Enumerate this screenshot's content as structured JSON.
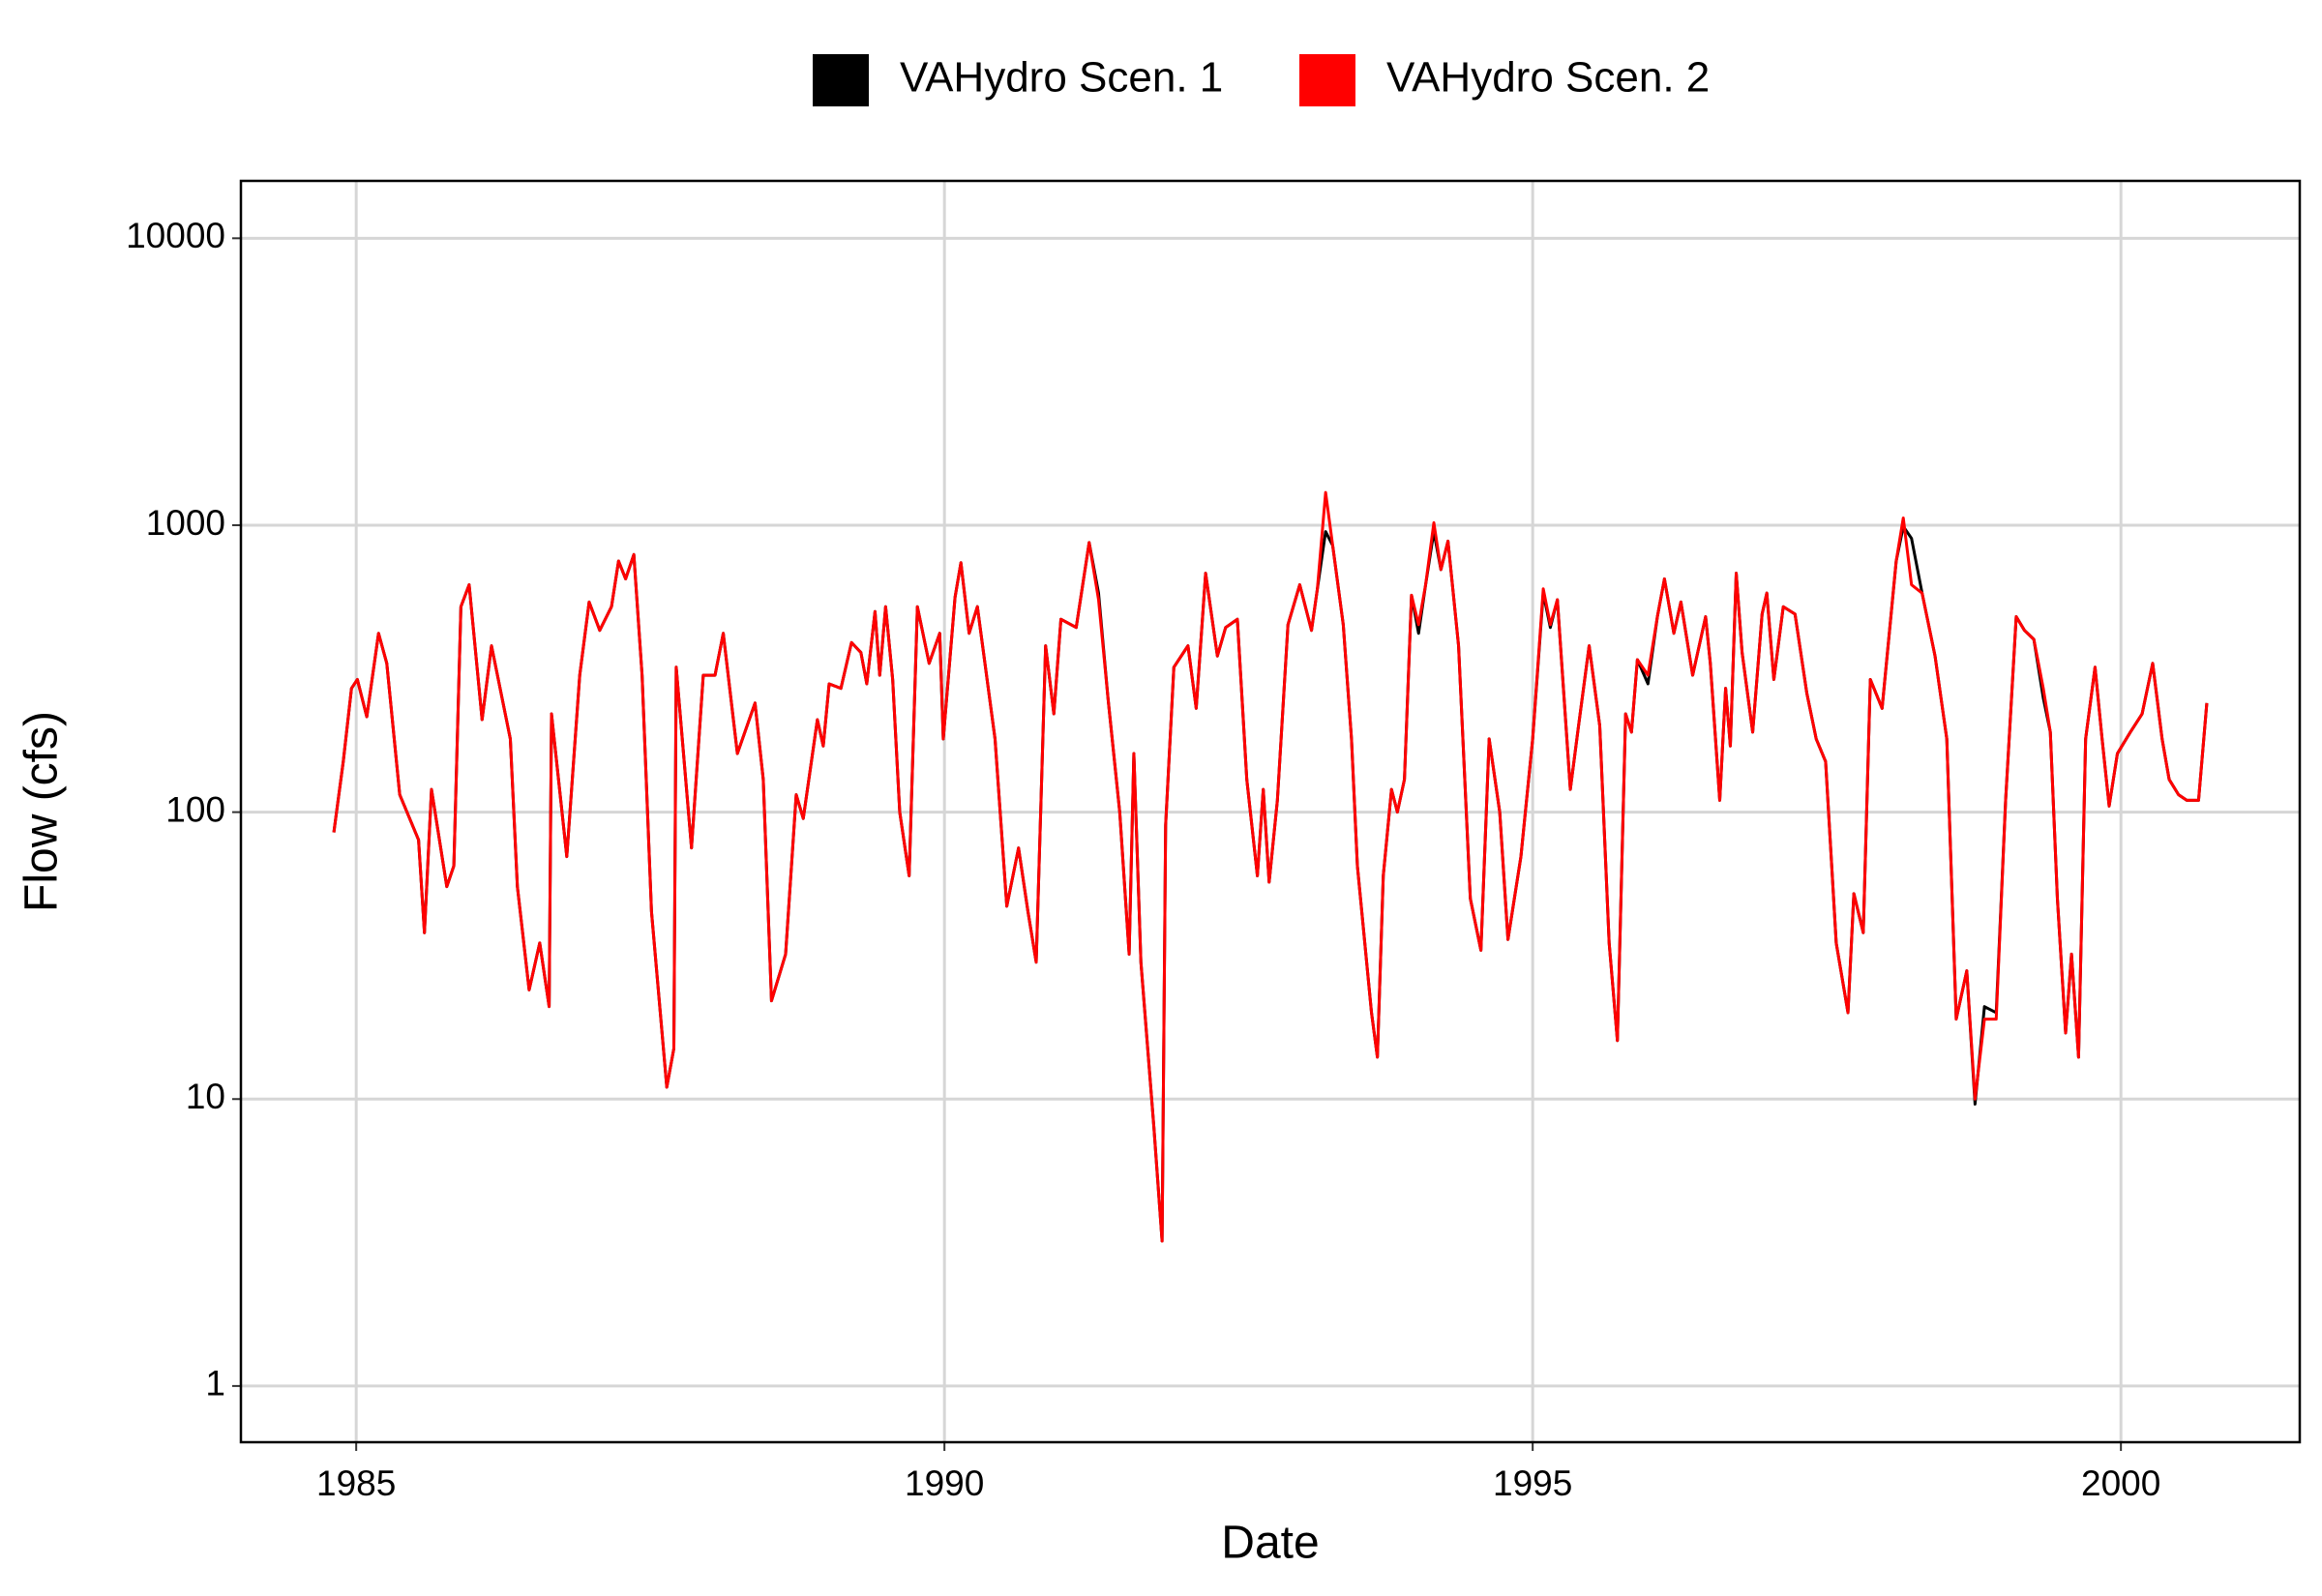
{
  "chart_data": {
    "type": "line",
    "x_label": "Date",
    "y_label": "Flow (cfs)",
    "x": [
      1984.81,
      1984.89,
      1984.96,
      1985.01,
      1985.09,
      1985.19,
      1985.26,
      1985.37,
      1985.53,
      1985.58,
      1985.64,
      1985.77,
      1985.83,
      1985.89,
      1985.96,
      1986.07,
      1986.15,
      1986.31,
      1986.37,
      1986.47,
      1986.56,
      1986.64,
      1986.66,
      1986.79,
      1986.9,
      1986.98,
      1987.07,
      1987.17,
      1987.23,
      1987.29,
      1987.36,
      1987.43,
      1987.51,
      1987.64,
      1987.7,
      1987.72,
      1987.85,
      1987.95,
      1988.05,
      1988.12,
      1988.24,
      1988.39,
      1988.46,
      1988.53,
      1988.65,
      1988.74,
      1988.8,
      1988.92,
      1988.97,
      1989.02,
      1989.12,
      1989.21,
      1989.29,
      1989.34,
      1989.41,
      1989.45,
      1989.5,
      1989.56,
      1989.62,
      1989.7,
      1989.77,
      1989.87,
      1989.96,
      1989.99,
      1990.09,
      1990.14,
      1990.21,
      1990.28,
      1990.43,
      1990.53,
      1990.63,
      1990.71,
      1990.78,
      1990.86,
      1990.93,
      1990.99,
      1991.12,
      1991.23,
      1991.31,
      1991.39,
      1991.49,
      1991.57,
      1991.61,
      1991.67,
      1991.78,
      1991.85,
      1991.88,
      1991.95,
      1992.07,
      1992.14,
      1992.22,
      1992.32,
      1992.39,
      1992.49,
      1992.57,
      1992.66,
      1992.71,
      1992.76,
      1992.83,
      1992.92,
      1993.02,
      1993.12,
      1993.17,
      1993.24,
      1993.3,
      1993.39,
      1993.46,
      1993.51,
      1993.63,
      1993.68,
      1993.73,
      1993.8,
      1993.85,
      1993.91,
      1993.97,
      1994.03,
      1994.09,
      1994.16,
      1994.22,
      1994.28,
      1994.37,
      1994.47,
      1994.56,
      1994.63,
      1994.72,
      1994.79,
      1994.9,
      1995.0,
      1995.09,
      1995.15,
      1995.21,
      1995.32,
      1995.39,
      1995.48,
      1995.57,
      1995.65,
      1995.72,
      1995.79,
      1995.84,
      1995.89,
      1995.98,
      1996.06,
      1996.12,
      1996.2,
      1996.26,
      1996.36,
      1996.47,
      1996.51,
      1996.59,
      1996.64,
      1996.68,
      1996.73,
      1996.78,
      1996.87,
      1996.95,
      1996.99,
      1997.05,
      1997.13,
      1997.23,
      1997.33,
      1997.41,
      1997.49,
      1997.58,
      1997.68,
      1997.73,
      1997.81,
      1997.87,
      1997.97,
      1998.09,
      1998.15,
      1998.22,
      1998.31,
      1998.42,
      1998.52,
      1998.6,
      1998.69,
      1998.76,
      1998.84,
      1998.94,
      1999.02,
      1999.11,
      1999.18,
      1999.26,
      1999.34,
      1999.4,
      1999.46,
      1999.53,
      1999.58,
      1999.64,
      1999.7,
      1999.78,
      1999.84,
      1999.9,
      1999.97,
      2000.08,
      2000.18,
      2000.27,
      2000.35,
      2000.41,
      2000.49,
      2000.56,
      2000.66,
      2000.73
    ],
    "series": [
      {
        "name": "VAHydro Scen. 1",
        "color": "#000000",
        "values": [
          85,
          150,
          270,
          290,
          215,
          420,
          330,
          115,
          80,
          38,
          120,
          55,
          65,
          520,
          620,
          210,
          380,
          180,
          55,
          24,
          35,
          21,
          220,
          70,
          300,
          540,
          430,
          520,
          750,
          650,
          790,
          300,
          45,
          11,
          15,
          320,
          75,
          300,
          300,
          420,
          160,
          240,
          130,
          22,
          32,
          115,
          95,
          210,
          170,
          280,
          270,
          390,
          360,
          280,
          500,
          300,
          520,
          290,
          100,
          60,
          520,
          330,
          420,
          180,
          560,
          740,
          420,
          520,
          180,
          47,
          75,
          45,
          30,
          380,
          220,
          470,
          440,
          870,
          580,
          250,
          100,
          32,
          160,
          30,
          8,
          3.2,
          90,
          320,
          380,
          230,
          680,
          350,
          440,
          470,
          130,
          60,
          120,
          57,
          110,
          450,
          620,
          430,
          600,
          950,
          850,
          450,
          180,
          65,
          20,
          14,
          60,
          120,
          100,
          130,
          570,
          420,
          620,
          950,
          700,
          880,
          380,
          50,
          33,
          180,
          100,
          36,
          70,
          180,
          580,
          440,
          550,
          120,
          200,
          380,
          200,
          35,
          16,
          220,
          190,
          340,
          280,
          480,
          650,
          420,
          540,
          300,
          480,
          330,
          110,
          270,
          170,
          680,
          360,
          190,
          490,
          580,
          290,
          520,
          490,
          260,
          180,
          150,
          35,
          20,
          52,
          38,
          290,
          230,
          750,
          990,
          900,
          580,
          350,
          180,
          19,
          28,
          9.6,
          21,
          20,
          110,
          480,
          430,
          400,
          250,
          190,
          50,
          17,
          32,
          14,
          180,
          320,
          180,
          105,
          160,
          190,
          220,
          330,
          180,
          130,
          115,
          110,
          110,
          240
        ]
      },
      {
        "name": "VAHydro Scen. 2",
        "color": "#ff0000",
        "values": [
          85,
          150,
          270,
          290,
          215,
          420,
          330,
          115,
          80,
          38,
          120,
          55,
          65,
          520,
          620,
          210,
          380,
          180,
          55,
          24,
          35,
          21,
          220,
          70,
          300,
          540,
          430,
          520,
          750,
          650,
          790,
          300,
          45,
          11,
          15,
          320,
          75,
          300,
          300,
          420,
          160,
          240,
          130,
          22,
          32,
          115,
          95,
          210,
          170,
          280,
          270,
          390,
          360,
          280,
          500,
          300,
          520,
          290,
          100,
          60,
          520,
          330,
          420,
          180,
          560,
          740,
          420,
          520,
          180,
          47,
          75,
          45,
          30,
          380,
          220,
          470,
          440,
          870,
          550,
          250,
          100,
          32,
          160,
          30,
          8,
          3.2,
          90,
          320,
          380,
          230,
          680,
          350,
          440,
          470,
          130,
          60,
          120,
          57,
          110,
          450,
          620,
          430,
          600,
          1300,
          850,
          450,
          180,
          65,
          20,
          14,
          60,
          120,
          100,
          130,
          570,
          450,
          620,
          1020,
          700,
          880,
          380,
          50,
          33,
          180,
          100,
          36,
          70,
          180,
          600,
          450,
          550,
          120,
          200,
          380,
          200,
          35,
          16,
          220,
          190,
          340,
          300,
          480,
          650,
          420,
          540,
          300,
          480,
          330,
          110,
          270,
          170,
          680,
          360,
          190,
          490,
          580,
          290,
          520,
          490,
          260,
          180,
          150,
          35,
          20,
          52,
          38,
          290,
          230,
          750,
          1060,
          620,
          580,
          350,
          180,
          19,
          28,
          10,
          19,
          19,
          110,
          480,
          430,
          400,
          270,
          190,
          50,
          17,
          32,
          14,
          180,
          320,
          180,
          105,
          160,
          190,
          220,
          330,
          180,
          130,
          115,
          110,
          110,
          240
        ]
      }
    ],
    "xlim": [
      1984.02,
      2001.52
    ],
    "xticks": [
      1985,
      1990,
      1995,
      2000
    ],
    "ylim": [
      0.637,
      15849
    ],
    "yticks": [
      1,
      10,
      100,
      1000,
      10000
    ],
    "y_scale": "log",
    "grid": true,
    "legend": "top"
  }
}
